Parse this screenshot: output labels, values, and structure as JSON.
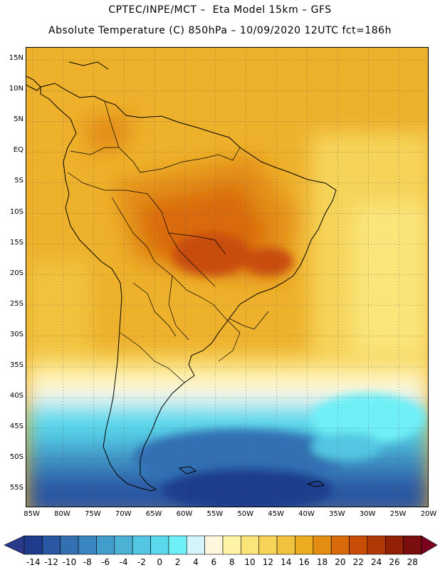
{
  "header": {
    "line1": "CPTEC/INPE/MCT –  Eta Model 15km – GFS",
    "line2": "Absolute Temperature (C) 850hPa – 10/09/2020 12UTC fct=186h"
  },
  "map": {
    "lat_labels": [
      "15N",
      "10N",
      "5N",
      "EQ",
      "5S",
      "10S",
      "15S",
      "20S",
      "25S",
      "30S",
      "35S",
      "40S",
      "45S",
      "50S",
      "55S"
    ],
    "lat_values": [
      15,
      10,
      5,
      0,
      -5,
      -10,
      -15,
      -20,
      -25,
      -30,
      -35,
      -40,
      -45,
      -50,
      -55
    ],
    "lon_labels": [
      "85W",
      "80W",
      "75W",
      "70W",
      "65W",
      "60W",
      "55W",
      "50W",
      "45W",
      "40W",
      "35W",
      "30W",
      "25W",
      "20W"
    ],
    "lon_values": [
      -85,
      -80,
      -75,
      -70,
      -65,
      -60,
      -55,
      -50,
      -45,
      -40,
      -35,
      -30,
      -25,
      -20
    ],
    "extent": {
      "lon_min": -86,
      "lon_max": -20,
      "lat_min": -58,
      "lat_max": 17
    },
    "gridlines": "dotted"
  },
  "colorbar": {
    "labels": [
      "-14",
      "-12",
      "-10",
      "-8",
      "-6",
      "-4",
      "-2",
      "0",
      "2",
      "4",
      "6",
      "8",
      "10",
      "12",
      "14",
      "16",
      "18",
      "20",
      "22",
      "24",
      "26",
      "28"
    ],
    "colors": [
      "#1f3c8c",
      "#2a56a2",
      "#3370b2",
      "#3a86c0",
      "#429dcb",
      "#4bb2d6",
      "#52c6e2",
      "#5ad8ec",
      "#6ff0f6",
      "#d2f4fa",
      "#fff6de",
      "#fff3a6",
      "#fbe57a",
      "#f6d45a",
      "#f1c23e",
      "#ebac22",
      "#e38e12",
      "#d96a0c",
      "#c84e08",
      "#b03806",
      "#922004",
      "#7a0e0e"
    ],
    "under_color": "#2a3a8a",
    "over_color": "#7a0020"
  }
}
